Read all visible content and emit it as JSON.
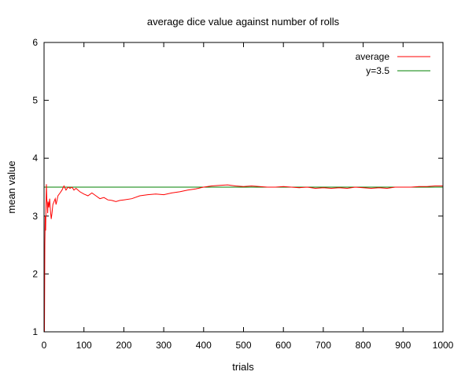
{
  "chart_data": {
    "type": "line",
    "title": "average dice value against number of rolls",
    "xlabel": "trials",
    "ylabel": "mean value",
    "xlim": [
      0,
      1000
    ],
    "ylim": [
      1,
      6
    ],
    "xticks": [
      "0",
      "100",
      "200",
      "300",
      "400",
      "500",
      "600",
      "700",
      "800",
      "900",
      "1000"
    ],
    "yticks": [
      "1",
      "2",
      "3",
      "4",
      "5",
      "6"
    ],
    "grid": false,
    "legend_position": "top-right",
    "series": [
      {
        "name": "average",
        "color": "#ff0000",
        "x": [
          1,
          2,
          3,
          4,
          5,
          6,
          7,
          8,
          9,
          10,
          12,
          14,
          16,
          18,
          20,
          22,
          25,
          28,
          30,
          35,
          40,
          45,
          50,
          55,
          60,
          65,
          70,
          75,
          80,
          90,
          100,
          110,
          120,
          130,
          140,
          150,
          160,
          170,
          180,
          190,
          200,
          220,
          240,
          260,
          280,
          300,
          320,
          340,
          360,
          380,
          400,
          420,
          440,
          460,
          480,
          500,
          520,
          540,
          560,
          580,
          600,
          620,
          640,
          660,
          680,
          700,
          720,
          740,
          760,
          780,
          800,
          820,
          840,
          860,
          880,
          900,
          920,
          940,
          960,
          980,
          1000
        ],
        "y": [
          1.0,
          2.5,
          3.0,
          2.75,
          3.2,
          3.55,
          3.3,
          3.2,
          3.05,
          3.25,
          3.15,
          3.3,
          3.1,
          2.95,
          3.05,
          3.2,
          3.25,
          3.3,
          3.2,
          3.35,
          3.4,
          3.45,
          3.52,
          3.45,
          3.5,
          3.48,
          3.5,
          3.45,
          3.48,
          3.42,
          3.38,
          3.35,
          3.4,
          3.35,
          3.3,
          3.32,
          3.28,
          3.27,
          3.25,
          3.27,
          3.28,
          3.3,
          3.35,
          3.37,
          3.38,
          3.37,
          3.4,
          3.42,
          3.45,
          3.47,
          3.5,
          3.52,
          3.53,
          3.54,
          3.52,
          3.51,
          3.52,
          3.51,
          3.5,
          3.5,
          3.51,
          3.5,
          3.49,
          3.5,
          3.48,
          3.49,
          3.48,
          3.49,
          3.48,
          3.5,
          3.49,
          3.48,
          3.49,
          3.48,
          3.5,
          3.5,
          3.5,
          3.51,
          3.51,
          3.52,
          3.52
        ]
      },
      {
        "name": "y=3.5",
        "color": "#008000",
        "x": [
          0,
          1000
        ],
        "y": [
          3.5,
          3.5
        ]
      }
    ]
  }
}
